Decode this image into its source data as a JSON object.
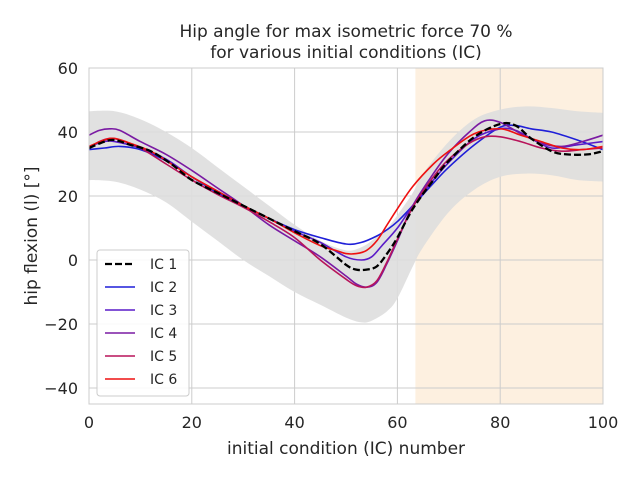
{
  "chart_data": {
    "type": "line",
    "title_line1": "Hip angle for max isometric force 70 %",
    "title_line2": "for various initial conditions (IC)",
    "xlabel": "initial condition (IC) number",
    "ylabel": "hip flexion (l) [°]",
    "xlim": [
      0,
      100
    ],
    "ylim": [
      -45,
      60
    ],
    "xticks": [
      0,
      20,
      40,
      60,
      80,
      100
    ],
    "yticks": [
      -40,
      -20,
      0,
      20,
      40,
      60
    ],
    "x_tick_labels": [
      "0",
      "20",
      "40",
      "60",
      "80",
      "100"
    ],
    "y_tick_labels": [
      "−40",
      "−20",
      "0",
      "20",
      "40",
      "60"
    ],
    "grid": true,
    "legend_position": "lower-left",
    "shaded_region": {
      "x": [
        63.5,
        100
      ],
      "color": "#fdf0e0"
    },
    "band": {
      "color": "#dedede",
      "x": [
        0,
        5,
        10,
        15,
        20,
        25,
        30,
        35,
        40,
        45,
        50,
        53,
        55,
        58,
        60,
        63,
        65,
        70,
        75,
        80,
        85,
        90,
        95,
        100
      ],
      "upper": [
        46.5,
        46.5,
        44,
        40,
        35,
        29,
        23,
        17,
        11,
        6,
        3,
        4,
        6,
        10,
        14,
        21,
        27,
        37,
        44,
        47,
        48,
        47.5,
        46.5,
        46
      ],
      "lower": [
        25,
        24.5,
        22,
        18,
        12,
        6,
        0,
        -5,
        -10,
        -14,
        -18,
        -19.5,
        -19,
        -16,
        -12,
        -2,
        4,
        15,
        22,
        26,
        27,
        26.5,
        25,
        24.5
      ]
    },
    "series": [
      {
        "name": "IC 1",
        "color": "#000000",
        "dashed": true,
        "width": 2.3,
        "x": [
          0,
          3,
          5,
          8,
          12,
          16,
          20,
          25,
          30,
          35,
          40,
          45,
          50,
          52,
          54,
          56,
          58,
          60,
          63,
          67,
          70,
          75,
          80,
          83,
          86,
          90,
          93,
          97,
          100
        ],
        "y": [
          35,
          37,
          37.5,
          36,
          34,
          30,
          25,
          21,
          17,
          13,
          9,
          5,
          -1.5,
          -3,
          -3,
          -2,
          2,
          7,
          16,
          25,
          31,
          38.5,
          42.5,
          42,
          38,
          34,
          33,
          33,
          34
        ]
      },
      {
        "name": "IC 2",
        "color": "#1f1fd8",
        "dashed": false,
        "width": 1.6,
        "x": [
          0,
          3,
          6,
          10,
          15,
          20,
          25,
          30,
          35,
          40,
          45,
          50,
          53,
          56,
          58,
          60,
          63,
          67,
          70,
          75,
          80,
          83,
          86,
          90,
          95,
          100
        ],
        "y": [
          34.5,
          35,
          35.5,
          34.5,
          31,
          26,
          21,
          17,
          13,
          9.5,
          7,
          5,
          5.5,
          7.5,
          9.5,
          12,
          17,
          24,
          29,
          36,
          41.5,
          42,
          41,
          40,
          37.5,
          34.5
        ]
      },
      {
        "name": "IC 3",
        "color": "#5a1bc8",
        "dashed": false,
        "width": 1.6,
        "x": [
          0,
          3,
          5,
          10,
          15,
          20,
          25,
          30,
          35,
          40,
          45,
          50,
          53,
          55,
          57,
          60,
          63,
          67,
          70,
          75,
          80,
          83,
          86,
          90,
          95,
          100
        ],
        "y": [
          35.5,
          37,
          37,
          35,
          31.5,
          26,
          21.5,
          17,
          13,
          9,
          5.5,
          1,
          0,
          1,
          4.5,
          10,
          17,
          25,
          30.5,
          38,
          41,
          40.5,
          38,
          35,
          36,
          37
        ]
      },
      {
        "name": "IC 4",
        "color": "#7a1aa3",
        "dashed": false,
        "width": 1.6,
        "x": [
          0,
          2,
          4,
          6,
          10,
          15,
          20,
          25,
          30,
          35,
          40,
          45,
          50,
          52,
          54,
          56,
          58,
          60,
          63,
          67,
          70,
          74,
          77,
          80,
          84,
          88,
          92,
          96,
          100
        ],
        "y": [
          39,
          40.5,
          41,
          40.5,
          37,
          33,
          28,
          22.5,
          17,
          11,
          6,
          1,
          -5,
          -7.5,
          -8.5,
          -7,
          -1,
          6,
          17,
          27,
          33.5,
          40,
          43.5,
          43,
          39.5,
          36.5,
          35.5,
          37,
          39
        ]
      },
      {
        "name": "IC 5",
        "color": "#b8145a",
        "dashed": false,
        "width": 1.6,
        "x": [
          0,
          2,
          4,
          6,
          10,
          15,
          20,
          25,
          30,
          35,
          40,
          45,
          50,
          52,
          54,
          56,
          58,
          60,
          63,
          67,
          70,
          74,
          77,
          80,
          84,
          88,
          92,
          96,
          100
        ],
        "y": [
          35,
          37,
          38,
          37.5,
          35,
          30,
          25,
          20.5,
          16.5,
          12,
          7,
          0,
          -6,
          -8,
          -8.5,
          -6.5,
          -0.5,
          6.5,
          16.5,
          26,
          31.5,
          36.5,
          38.5,
          38.5,
          37,
          35,
          34,
          34.5,
          35
        ]
      },
      {
        "name": "IC 6",
        "color": "#ee1111",
        "dashed": false,
        "width": 1.6,
        "x": [
          0,
          3,
          5,
          8,
          12,
          16,
          20,
          25,
          30,
          35,
          40,
          45,
          48,
          50,
          52,
          54,
          56,
          58,
          60,
          63,
          67,
          70,
          75,
          80,
          84,
          88,
          92,
          96,
          100
        ],
        "y": [
          35.5,
          37.5,
          38,
          36.5,
          34,
          30,
          26,
          21.5,
          17,
          13,
          8.5,
          4.5,
          3,
          2,
          2,
          3,
          6,
          11,
          16,
          23,
          30,
          34,
          39.5,
          41,
          39,
          37,
          35,
          34.5,
          35.5
        ]
      }
    ]
  }
}
